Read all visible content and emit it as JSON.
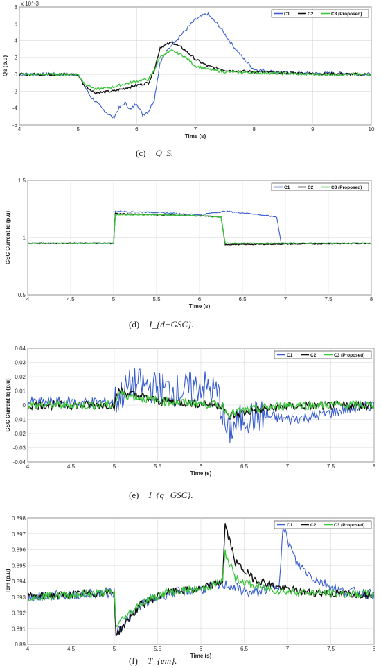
{
  "colors": {
    "C1": "#3a5fcd",
    "C2": "#111111",
    "C3": "#3cc43c"
  },
  "chart_data": [
    {
      "id": "qs",
      "type": "line",
      "caption_label": "(c)",
      "caption_symbol": "Q_S.",
      "xlabel": "Time (s)",
      "ylabel": "Qs (p.u)",
      "exponent_label": "x 10^-3",
      "xlim": [
        4,
        10
      ],
      "ylim": [
        -6,
        8
      ],
      "xticks": [
        "4",
        "5",
        "6",
        "7",
        "8",
        "9",
        "10"
      ],
      "yticks": [
        "-6",
        "-4",
        "-2",
        "0",
        "2",
        "4",
        "6",
        "8"
      ],
      "grid": true,
      "legend_position": "top-right",
      "series": [
        {
          "name": "C1",
          "x": [
            4,
            4.5,
            5,
            5.2,
            5.4,
            5.6,
            5.7,
            5.8,
            5.9,
            6,
            6.1,
            6.2,
            6.3,
            6.4,
            6.6,
            6.8,
            7,
            7.2,
            7.4,
            7.6,
            7.8,
            8,
            8.5,
            9,
            9.5,
            10
          ],
          "y": [
            0,
            0,
            0,
            -2.5,
            -4,
            -5.2,
            -4,
            -3.4,
            -4.2,
            -3.4,
            -4.8,
            -4.4,
            -3,
            1.5,
            3.6,
            5,
            6.5,
            7.2,
            5.8,
            3.8,
            2,
            0.6,
            0.2,
            0.1,
            0.1,
            0
          ]
        },
        {
          "name": "C2",
          "x": [
            4,
            4.5,
            5,
            5.1,
            5.3,
            5.6,
            6,
            6.2,
            6.3,
            6.4,
            6.6,
            6.8,
            7,
            7.2,
            7.5,
            8,
            9,
            10
          ],
          "y": [
            0,
            0,
            0,
            -1.3,
            -2.2,
            -2,
            -1.3,
            -1,
            0.5,
            3.2,
            3.8,
            3,
            1.8,
            1,
            0.5,
            0.3,
            0.1,
            0
          ]
        },
        {
          "name": "C3 (Proposed)",
          "x": [
            4,
            4.5,
            5,
            5.1,
            5.3,
            5.6,
            6,
            6.2,
            6.3,
            6.4,
            6.6,
            6.8,
            7,
            7.2,
            7.5,
            8,
            9,
            10
          ],
          "y": [
            0,
            0,
            0,
            -1,
            -1.8,
            -1.5,
            -0.8,
            -0.6,
            0.5,
            2.1,
            2.8,
            2.2,
            1,
            0.6,
            0.3,
            0.2,
            0,
            0
          ]
        }
      ]
    },
    {
      "id": "id_gsc",
      "type": "line",
      "caption_label": "(d)",
      "caption_symbol": "I_{d−GSC}.",
      "xlabel": "Time (s)",
      "ylabel": "GSC Current Id (p.u)",
      "xlim": [
        4,
        8
      ],
      "ylim": [
        0.5,
        1.5
      ],
      "xticks": [
        "4",
        "4.5",
        "5",
        "5.5",
        "6",
        "6.5",
        "7",
        "7.5",
        "8"
      ],
      "yticks": [
        "0.5",
        "1",
        "1.5"
      ],
      "grid": true,
      "legend_position": "top-right",
      "series": [
        {
          "name": "C1",
          "x": [
            4,
            5,
            5.02,
            5.5,
            6,
            6.3,
            6.6,
            6.9,
            6.95,
            8
          ],
          "y": [
            0.95,
            0.95,
            1.23,
            1.22,
            1.2,
            1.23,
            1.21,
            1.18,
            0.95,
            0.95
          ]
        },
        {
          "name": "C2",
          "x": [
            4,
            5,
            5.02,
            5.5,
            6,
            6.25,
            6.3,
            8
          ],
          "y": [
            0.95,
            0.95,
            1.21,
            1.2,
            1.19,
            1.18,
            0.94,
            0.95
          ]
        },
        {
          "name": "C3 (Proposed)",
          "x": [
            4,
            5,
            5.02,
            5.5,
            6,
            6.25,
            6.3,
            8
          ],
          "y": [
            0.95,
            0.95,
            1.2,
            1.2,
            1.19,
            1.18,
            0.95,
            0.95
          ]
        }
      ]
    },
    {
      "id": "iq_gsc",
      "type": "line",
      "caption_label": "(e)",
      "caption_symbol": "I_{q−GSC}.",
      "xlabel": "Time (s)",
      "ylabel": "GSC Current Iq (p.u)",
      "xlim": [
        4,
        8
      ],
      "ylim": [
        -0.04,
        0.04
      ],
      "xticks": [
        "4",
        "4.5",
        "5",
        "5.5",
        "6",
        "6.5",
        "7",
        "7.5",
        "8"
      ],
      "yticks": [
        "-0.04",
        "-0.03",
        "-0.02",
        "-0.01",
        "0",
        "0.01",
        "0.02",
        "0.03",
        "0.04"
      ],
      "grid": true,
      "legend_position": "top-right",
      "series": [
        {
          "name": "C1",
          "x": [
            4,
            5,
            5.2,
            5.5,
            5.8,
            6,
            6.2,
            6.3,
            6.5,
            6.8,
            7,
            7.3,
            7.6,
            8
          ],
          "y": [
            0.002,
            0.002,
            0.015,
            0.012,
            0.01,
            0.014,
            0.008,
            -0.02,
            -0.008,
            -0.008,
            -0.01,
            -0.008,
            -0.004,
            0.0
          ]
        },
        {
          "name": "C2",
          "x": [
            4,
            5,
            5.05,
            5.5,
            6,
            6.25,
            6.3,
            6.6,
            7,
            8
          ],
          "y": [
            0,
            0,
            0.01,
            0.003,
            0.001,
            0.0,
            -0.008,
            -0.004,
            -0.001,
            0
          ]
        },
        {
          "name": "C3 (Proposed)",
          "x": [
            4,
            5,
            5.05,
            5.5,
            6,
            6.25,
            6.3,
            6.6,
            7,
            8
          ],
          "y": [
            0,
            0,
            0.008,
            0.003,
            0.001,
            0.0,
            -0.006,
            -0.003,
            0,
            0
          ]
        }
      ]
    },
    {
      "id": "tem",
      "type": "line",
      "caption_label": "(f)",
      "caption_symbol": "T_{em}.",
      "xlabel": "Time (s)",
      "ylabel": "Tem (p.u)",
      "xlim": [
        4,
        8
      ],
      "ylim": [
        0.89,
        0.898
      ],
      "xticks": [
        "4",
        "4.5",
        "5",
        "5.5",
        "6",
        "6.5",
        "7",
        "7.5",
        "8"
      ],
      "yticks": [
        "0.89",
        "0.891",
        "0.892",
        "0.893",
        "0.894",
        "0.895",
        "0.896",
        "0.897",
        "0.898"
      ],
      "grid": true,
      "legend_position": "top-right",
      "series": [
        {
          "name": "C1",
          "x": [
            4,
            5,
            5.02,
            5.3,
            5.6,
            6,
            6.3,
            6.6,
            6.9,
            6.95,
            7.1,
            7.3,
            7.6,
            8
          ],
          "y": [
            0.893,
            0.8933,
            0.8908,
            0.8925,
            0.8932,
            0.8935,
            0.8938,
            0.8932,
            0.8938,
            0.8974,
            0.8952,
            0.8942,
            0.8934,
            0.8932
          ]
        },
        {
          "name": "C2",
          "x": [
            4,
            5,
            5.02,
            5.3,
            5.6,
            6,
            6.25,
            6.28,
            6.4,
            6.6,
            6.9,
            7.2,
            7.6,
            8
          ],
          "y": [
            0.893,
            0.8933,
            0.8906,
            0.8925,
            0.8933,
            0.8935,
            0.894,
            0.8976,
            0.8952,
            0.8942,
            0.8936,
            0.8933,
            0.8932,
            0.8932
          ]
        },
        {
          "name": "C3 (Proposed)",
          "x": [
            4,
            5,
            5.02,
            5.3,
            5.6,
            6,
            6.25,
            6.28,
            6.4,
            6.6,
            6.9,
            7.2,
            7.6,
            8
          ],
          "y": [
            0.893,
            0.8933,
            0.8912,
            0.8926,
            0.8933,
            0.8935,
            0.894,
            0.8958,
            0.8942,
            0.8937,
            0.8934,
            0.8933,
            0.8932,
            0.8932
          ]
        }
      ]
    }
  ]
}
